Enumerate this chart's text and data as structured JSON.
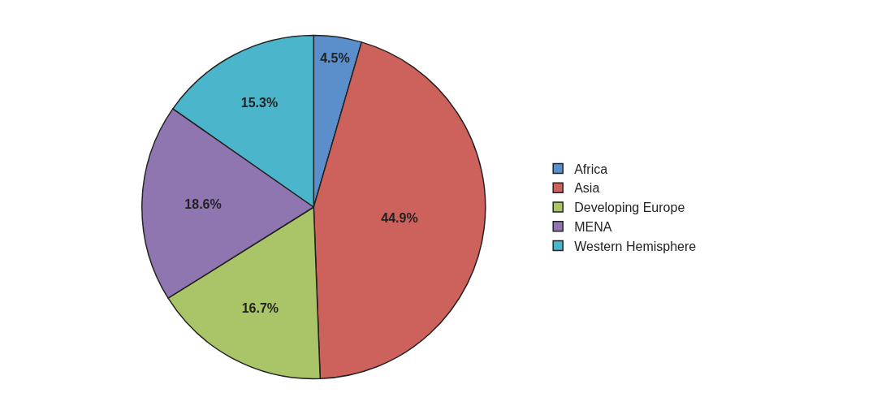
{
  "chart_data": {
    "type": "pie",
    "categories": [
      "Africa",
      "Asia",
      "Developing Europe",
      "MENA",
      "Western Hemisphere"
    ],
    "values": [
      4.5,
      44.9,
      16.7,
      18.6,
      15.3
    ],
    "value_labels": [
      "4.5%",
      "44.9%",
      "16.7%",
      "18.6%",
      "15.3%"
    ],
    "colors": [
      "#5b8fcb",
      "#cd625c",
      "#a9c567",
      "#8f76b0",
      "#4bb5cb"
    ],
    "legend": "right"
  }
}
